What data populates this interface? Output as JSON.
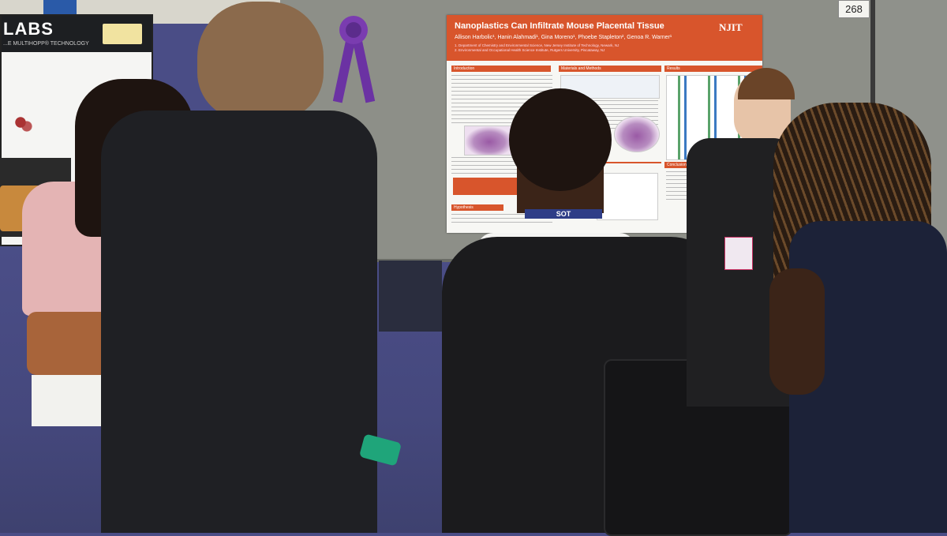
{
  "booth": {
    "number": "268"
  },
  "exhibit_sign": {
    "title": "LABS",
    "subtitle": "...E MULTIHOPP® TECHNOLOGY"
  },
  "poster": {
    "title": "Nanoplastics Can Infiltrate Mouse Placental Tissue",
    "authors": "Allison Harbolic¹, Hanin Alahmadi¹, Gina Moreno¹, Phoebe Stapleton², Genoa R. Warner¹",
    "affiliation_1": "1. Department of Chemistry and Environmental Science, New Jersey Institute of Technology, Newark, NJ",
    "affiliation_2": "2. Environmental and Occupational Health Science Institute, Rutgers University, Piscataway, NJ",
    "logo": "NJIT",
    "sections": {
      "introduction": "Introduction",
      "methods": "Materials and Methods",
      "results": "Results",
      "hypothesis": "Hypothesis",
      "conclusion": "Conclusion and Future Work"
    }
  },
  "lanyard": {
    "text": "SOT"
  },
  "colors": {
    "poster_accent": "#d8552c",
    "ribbon": "#6b32a3",
    "carpet": "#4a4d86",
    "board": "#8d8f88"
  }
}
